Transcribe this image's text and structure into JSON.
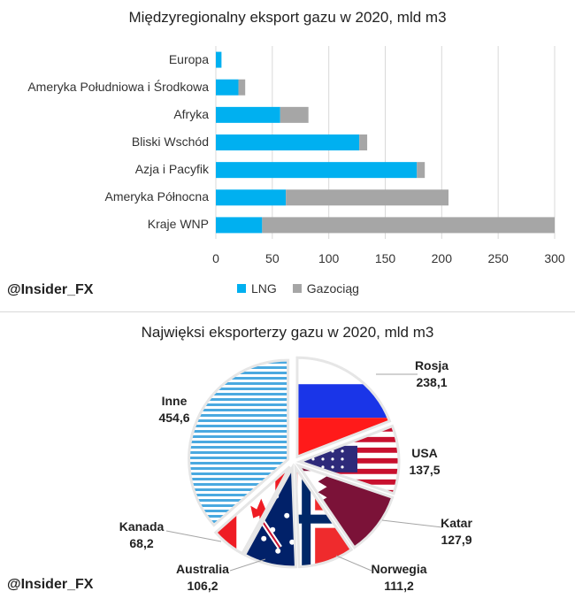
{
  "watermark": "@Insider_FX",
  "colors": {
    "lng": "#00b0f0",
    "pipeline": "#a6a6a6",
    "grid": "#d9d9d9",
    "leader": "#a6a6a6"
  },
  "chart_data": [
    {
      "type": "bar",
      "orientation": "horizontal",
      "stacked": true,
      "title": "Międzyregionalny eksport gazu w 2020, mld m3",
      "categories": [
        "Europa",
        "Ameryka Południowa i Środkowa",
        "Afryka",
        "Bliski Wschód",
        "Azja i Pacyfik",
        "Ameryka Północna",
        "Kraje WNP"
      ],
      "series": [
        {
          "name": "LNG",
          "values": [
            5,
            20,
            57,
            127,
            178,
            62,
            41
          ]
        },
        {
          "name": "Gazociąg",
          "values": [
            0,
            6,
            25,
            7,
            7,
            144,
            259
          ]
        }
      ],
      "xticks": [
        "0",
        "50",
        "100",
        "150",
        "200",
        "250",
        "300"
      ],
      "xlim": [
        0,
        300
      ],
      "grid": true,
      "legend": "bottom"
    },
    {
      "type": "pie",
      "exploded": true,
      "title": "Najwięksi eksporterzy gazu w 2020, mld m3",
      "slices": [
        {
          "name": "Rosja",
          "value": 238.1,
          "label": "238,1",
          "fill": "russia-flag"
        },
        {
          "name": "USA",
          "value": 137.5,
          "label": "137,5",
          "fill": "usa-flag"
        },
        {
          "name": "Katar",
          "value": 127.9,
          "label": "127,9",
          "fill": "qatar-flag"
        },
        {
          "name": "Norwegia",
          "value": 111.2,
          "label": "111,2",
          "fill": "norway-flag"
        },
        {
          "name": "Australia",
          "value": 106.2,
          "label": "106,2",
          "fill": "australia-flag"
        },
        {
          "name": "Kanada",
          "value": 68.2,
          "label": "68,2",
          "fill": "canada-flag"
        },
        {
          "name": "Inne",
          "value": 454.6,
          "label": "454,6",
          "fill": "blue-stripes"
        }
      ]
    }
  ]
}
